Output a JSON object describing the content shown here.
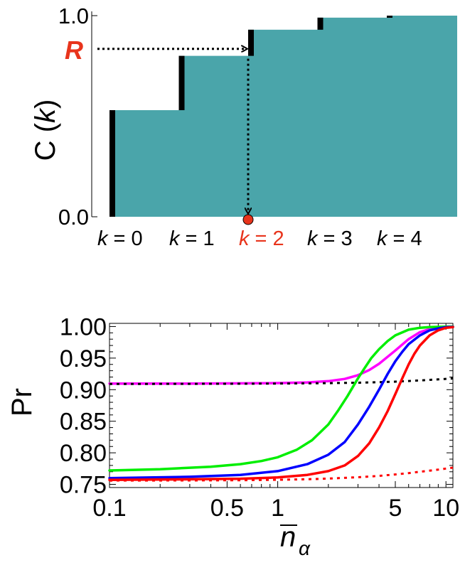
{
  "chart_data": [
    {
      "type": "bar",
      "ylabel_main": "C",
      "ylabel_var": "k",
      "ylim": [
        0,
        1
      ],
      "yticks": [
        "0.0",
        "1.0"
      ],
      "categories": [
        "k = 0",
        "k = 1",
        "k = 2",
        "k = 3",
        "k = 4"
      ],
      "category_var": [
        "k",
        "k",
        "k",
        "k",
        "k"
      ],
      "category_val": [
        "= 0",
        "= 1",
        "= 2",
        "= 3",
        "= 4"
      ],
      "values": [
        0.53,
        0.8,
        0.93,
        0.99,
        1.0
      ],
      "step_x": [
        0,
        1,
        2,
        3,
        4
      ],
      "bar_color": "#4aa5aa",
      "step_marker_color": "#000000",
      "annotation": {
        "label": "R",
        "label_color": "#e8341c",
        "r_value": 0.835,
        "selected_index": 2,
        "selected_color": "#e8341c"
      },
      "grid": false
    },
    {
      "type": "line",
      "ylabel": "Pr",
      "xlabel_main": "n",
      "xlabel_sub": "α",
      "xscale": "log",
      "xlim": [
        0.1,
        11
      ],
      "ylim": [
        0.745,
        1.005
      ],
      "xticks": [
        0.1,
        0.5,
        1,
        5,
        10
      ],
      "xtick_labels": [
        "0.1",
        "0.5",
        "1",
        "5",
        "10"
      ],
      "yticks": [
        0.75,
        0.8,
        0.85,
        0.9,
        0.95,
        1.0
      ],
      "ytick_labels": [
        "0.75",
        "0.80",
        "0.85",
        "0.90",
        "0.95",
        "1.00"
      ],
      "grid": false,
      "series": [
        {
          "color": "#ff00ff",
          "style": "solid",
          "x": [
            0.1,
            0.3,
            0.6,
            1,
            1.5,
            2,
            2.5,
            3,
            3.5,
            4,
            5,
            6,
            7,
            8,
            9,
            10,
            11
          ],
          "y": [
            0.9095,
            0.9097,
            0.91,
            0.9105,
            0.9115,
            0.9135,
            0.917,
            0.923,
            0.931,
            0.941,
            0.962,
            0.98,
            0.991,
            0.996,
            0.998,
            0.999,
            0.999
          ]
        },
        {
          "color": "#000000",
          "style": "dotted",
          "x": [
            0.1,
            0.3,
            0.6,
            1,
            1.5,
            2,
            3,
            4,
            5,
            6,
            7,
            8,
            9,
            10,
            11
          ],
          "y": [
            0.909,
            0.9092,
            0.9094,
            0.9097,
            0.91,
            0.9103,
            0.911,
            0.9118,
            0.9127,
            0.9137,
            0.9146,
            0.9155,
            0.9163,
            0.9171,
            0.9178
          ]
        },
        {
          "color": "#00ee00",
          "style": "solid",
          "x": [
            0.1,
            0.2,
            0.4,
            0.6,
            0.8,
            1,
            1.3,
            1.6,
            2,
            2.3,
            2.6,
            3,
            3.3,
            3.6,
            4,
            4.5,
            5,
            6,
            7,
            8,
            9,
            10,
            11
          ],
          "y": [
            0.772,
            0.774,
            0.778,
            0.782,
            0.787,
            0.793,
            0.805,
            0.82,
            0.845,
            0.868,
            0.89,
            0.918,
            0.935,
            0.95,
            0.964,
            0.977,
            0.986,
            0.995,
            0.998,
            0.999,
            0.9995,
            0.9998,
            0.9999
          ]
        },
        {
          "color": "#0000ff",
          "style": "solid",
          "x": [
            0.1,
            0.3,
            0.6,
            1,
            1.5,
            2,
            2.5,
            3,
            3.5,
            4,
            4.5,
            5,
            5.5,
            6,
            7,
            8,
            9,
            10,
            11
          ],
          "y": [
            0.76,
            0.762,
            0.765,
            0.771,
            0.782,
            0.797,
            0.817,
            0.845,
            0.873,
            0.9,
            0.925,
            0.945,
            0.96,
            0.972,
            0.986,
            0.994,
            0.997,
            0.999,
            0.9995
          ]
        },
        {
          "color": "#ff0000",
          "style": "solid",
          "x": [
            0.1,
            0.3,
            0.6,
            1,
            1.5,
            2,
            2.5,
            3,
            3.5,
            4,
            4.5,
            5,
            5.5,
            6,
            6.5,
            7,
            8,
            9,
            10,
            11
          ],
          "y": [
            0.757,
            0.758,
            0.759,
            0.761,
            0.765,
            0.771,
            0.78,
            0.795,
            0.815,
            0.84,
            0.866,
            0.893,
            0.918,
            0.94,
            0.957,
            0.97,
            0.986,
            0.994,
            0.998,
            0.999
          ]
        },
        {
          "color": "#ff0000",
          "style": "dotted",
          "x": [
            0.1,
            0.3,
            0.6,
            1,
            1.5,
            2,
            3,
            4,
            5,
            6,
            7,
            8,
            9,
            10,
            11
          ],
          "y": [
            0.756,
            0.7562,
            0.7566,
            0.7573,
            0.7582,
            0.7592,
            0.7613,
            0.7635,
            0.7657,
            0.7679,
            0.77,
            0.7718,
            0.7734,
            0.775,
            0.7765
          ]
        }
      ]
    }
  ]
}
